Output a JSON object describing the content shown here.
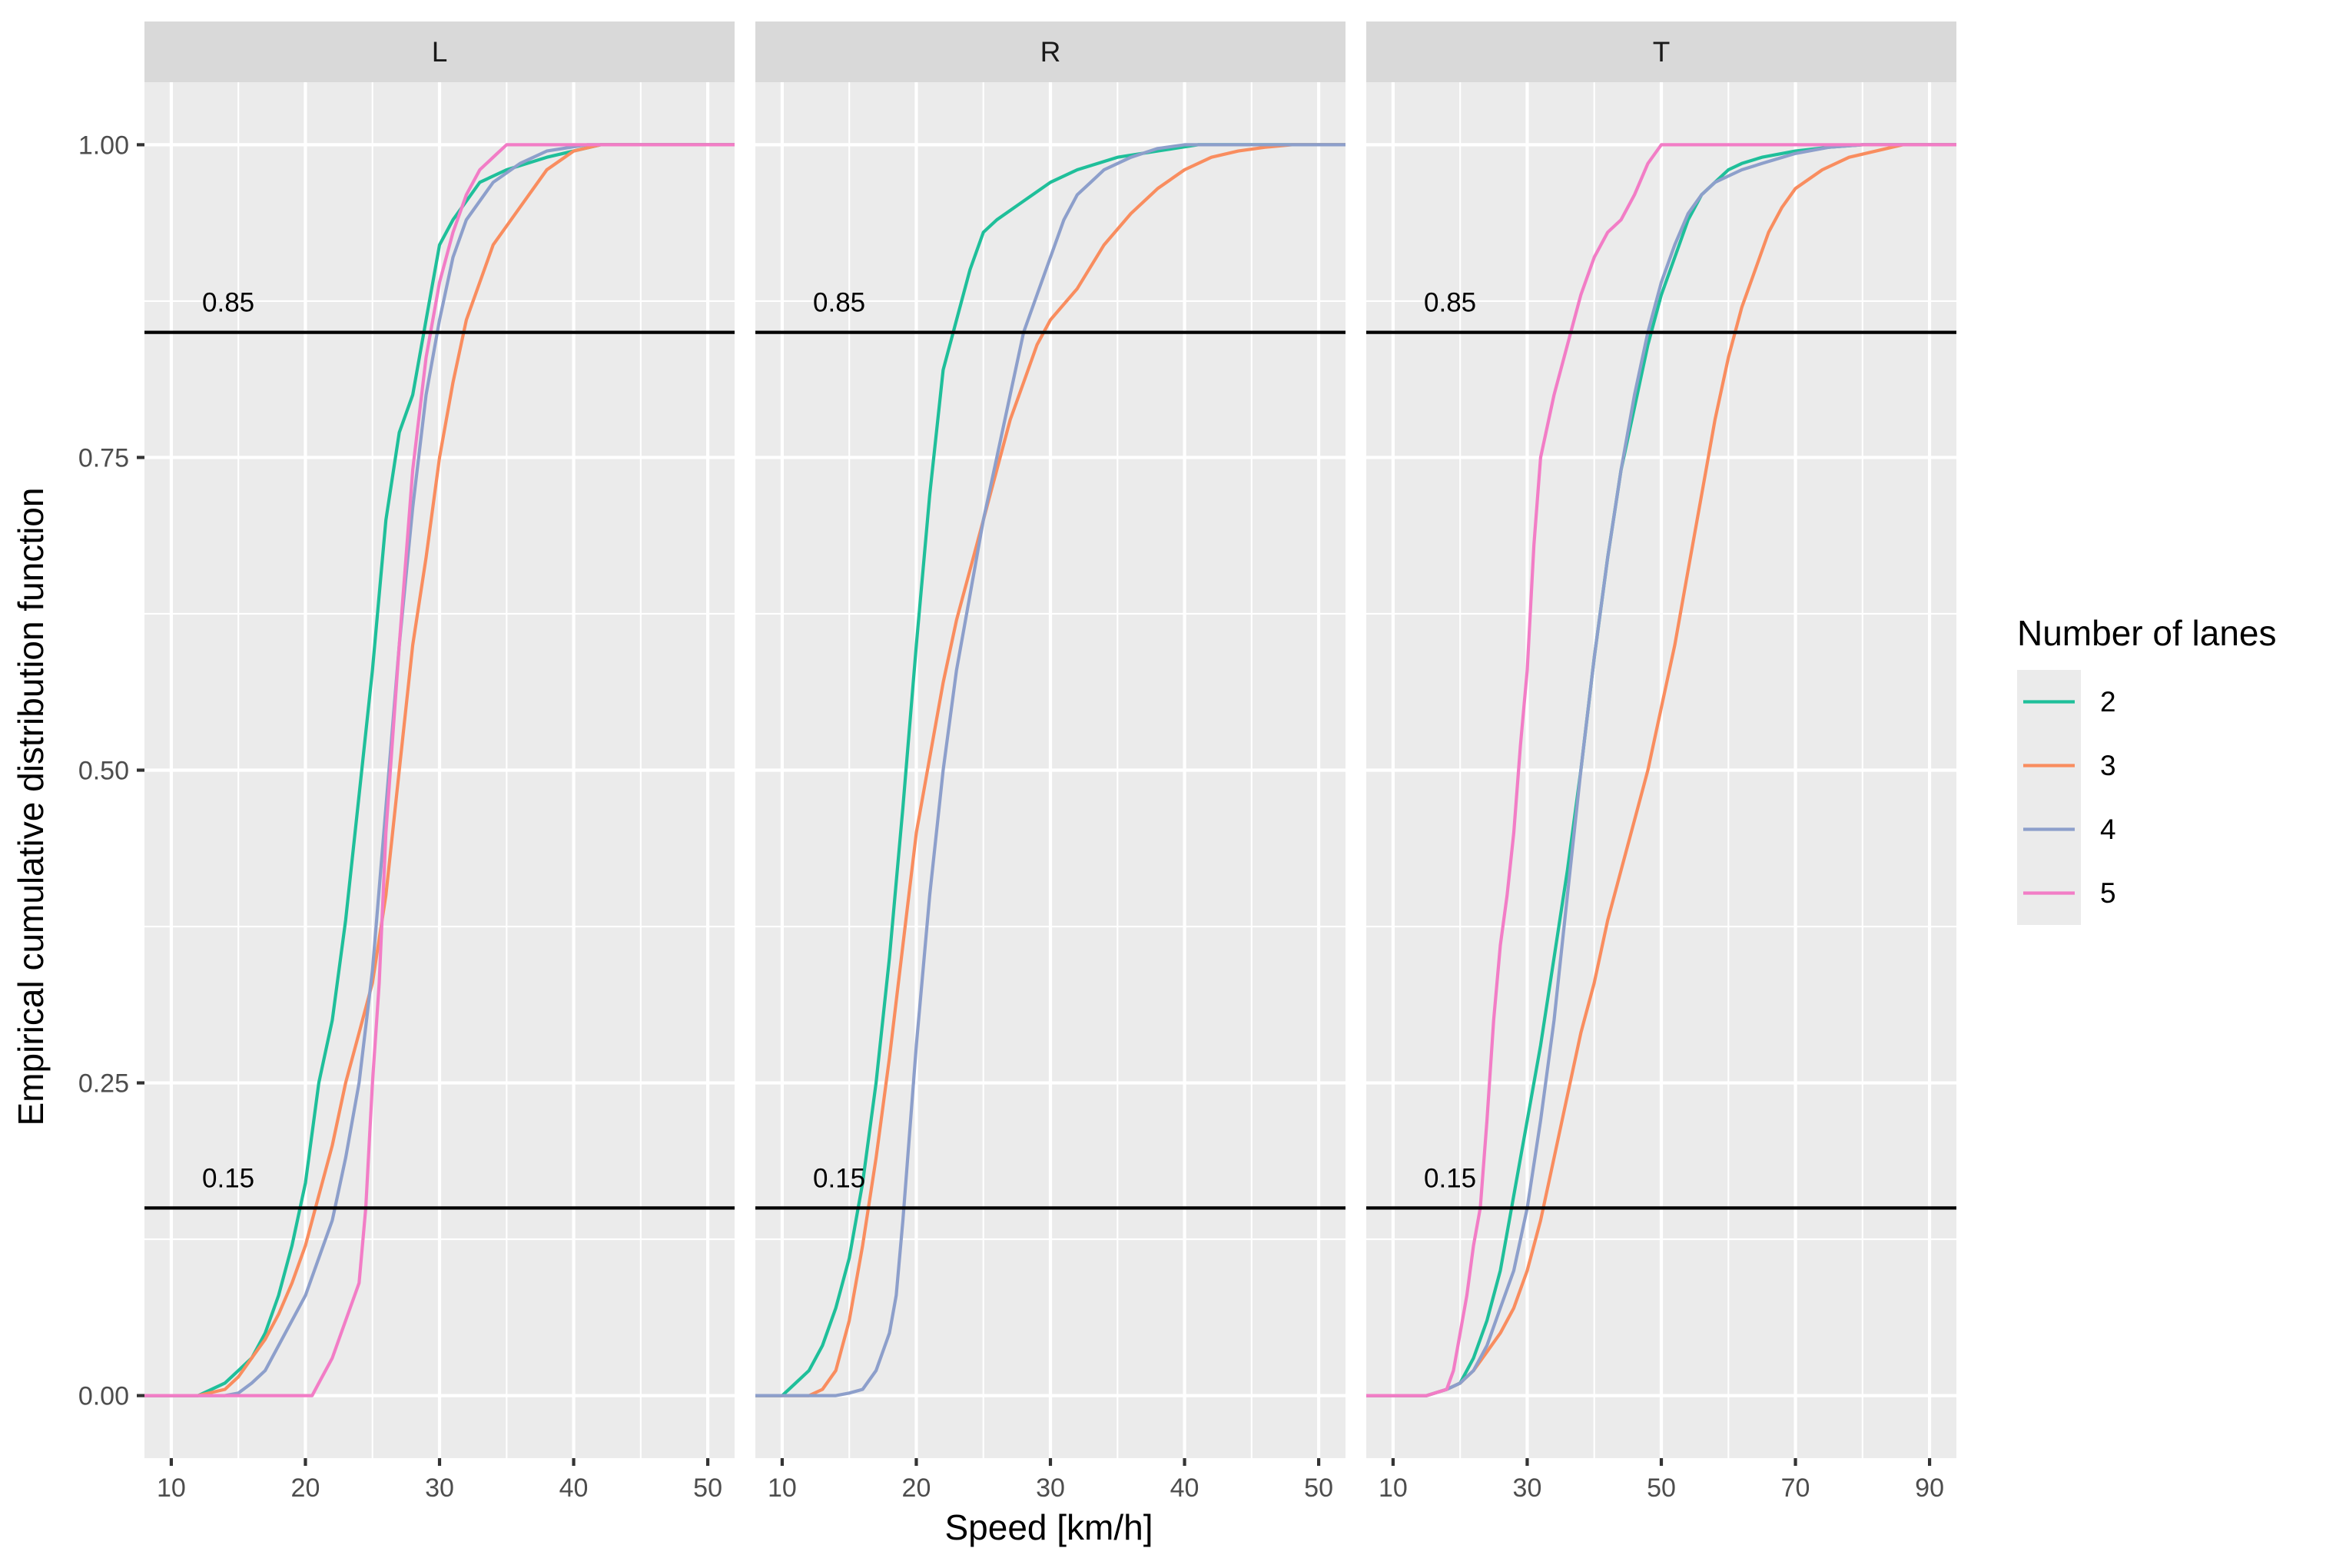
{
  "chart_data": {
    "type": "line",
    "subtype": "ecdf",
    "xlabel": "Speed [km/h]",
    "ylabel": "Empirical cumulative distribution function",
    "y_ticks": [
      "0.00",
      "0.25",
      "0.50",
      "0.75",
      "1.00"
    ],
    "ylim": [
      -0.05,
      1.05
    ],
    "reference_lines": [
      {
        "value": 0.85,
        "label": "0.85"
      },
      {
        "value": 0.15,
        "label": "0.15"
      }
    ],
    "legend": {
      "title": "Number of lanes",
      "entries": [
        {
          "name": "2",
          "color": "#1fbf9a"
        },
        {
          "name": "3",
          "color": "#f98d5f"
        },
        {
          "name": "4",
          "color": "#8d9fcb"
        },
        {
          "name": "5",
          "color": "#f27dc6"
        }
      ]
    },
    "panels": [
      {
        "name": "L",
        "xlim": [
          8,
          52
        ],
        "x_ticks": [
          "10",
          "20",
          "30",
          "40",
          "50"
        ],
        "x_minor": [
          15,
          25,
          35,
          45
        ],
        "series": [
          {
            "name": "2",
            "x": [
              8,
              12,
              14,
              15,
              16,
              17,
              18,
              19,
              20,
              21,
              22,
              23,
              24,
              25,
              26,
              27,
              28,
              29,
              30,
              31,
              33,
              35,
              38,
              42,
              52
            ],
            "y": [
              0,
              0,
              0.01,
              0.02,
              0.03,
              0.05,
              0.08,
              0.12,
              0.17,
              0.25,
              0.3,
              0.38,
              0.48,
              0.58,
              0.7,
              0.77,
              0.8,
              0.86,
              0.92,
              0.94,
              0.97,
              0.98,
              0.99,
              1.0,
              1.0
            ]
          },
          {
            "name": "3",
            "x": [
              8,
              12,
              14,
              15,
              16,
              17,
              18,
              19,
              20,
              21,
              22,
              23,
              24,
              25,
              26,
              27,
              28,
              29,
              30,
              31,
              32,
              34,
              36,
              38,
              40,
              42,
              52
            ],
            "y": [
              0,
              0,
              0.005,
              0.015,
              0.03,
              0.045,
              0.065,
              0.09,
              0.12,
              0.16,
              0.2,
              0.25,
              0.29,
              0.33,
              0.4,
              0.5,
              0.6,
              0.67,
              0.75,
              0.81,
              0.86,
              0.92,
              0.95,
              0.98,
              0.995,
              1.0,
              1.0
            ]
          },
          {
            "name": "4",
            "x": [
              8,
              14,
              15,
              16,
              17,
              18,
              19,
              20,
              21,
              22,
              23,
              24,
              25,
              26,
              27,
              28,
              29,
              30,
              31,
              32,
              34,
              36,
              38,
              41,
              52
            ],
            "y": [
              0,
              0,
              0.002,
              0.01,
              0.02,
              0.04,
              0.06,
              0.08,
              0.11,
              0.14,
              0.19,
              0.25,
              0.34,
              0.47,
              0.6,
              0.71,
              0.8,
              0.86,
              0.91,
              0.94,
              0.97,
              0.985,
              0.995,
              1.0,
              1.0
            ]
          },
          {
            "name": "5",
            "x": [
              8,
              20.5,
              21,
              22,
              23,
              24,
              24.5,
              25,
              25.5,
              26,
              27,
              28,
              29,
              30,
              31,
              32,
              33,
              34,
              35,
              52
            ],
            "y": [
              0,
              0,
              0.01,
              0.03,
              0.06,
              0.09,
              0.15,
              0.25,
              0.33,
              0.45,
              0.6,
              0.74,
              0.83,
              0.89,
              0.93,
              0.96,
              0.98,
              0.99,
              1.0,
              1.0
            ]
          }
        ]
      },
      {
        "name": "R",
        "xlim": [
          8,
          52
        ],
        "x_ticks": [
          "10",
          "20",
          "30",
          "40",
          "50"
        ],
        "x_minor": [
          15,
          25,
          35,
          45
        ],
        "series": [
          {
            "name": "2",
            "x": [
              8,
              10,
              11,
              12,
              13,
              14,
              15,
              16,
              17,
              18,
              19,
              20,
              21,
              22,
              23,
              24,
              25,
              26,
              28,
              30,
              32,
              35,
              38,
              41,
              52
            ],
            "y": [
              0,
              0,
              0.01,
              0.02,
              0.04,
              0.07,
              0.11,
              0.17,
              0.25,
              0.35,
              0.47,
              0.6,
              0.72,
              0.82,
              0.86,
              0.9,
              0.93,
              0.94,
              0.955,
              0.97,
              0.98,
              0.99,
              0.995,
              1.0,
              1.0
            ]
          },
          {
            "name": "3",
            "x": [
              8,
              12,
              13,
              14,
              15,
              16,
              17,
              18,
              19,
              20,
              21,
              22,
              23,
              24,
              25,
              26,
              27,
              28,
              29,
              30,
              32,
              34,
              36,
              38,
              40,
              42,
              44,
              46,
              48,
              52
            ],
            "y": [
              0,
              0,
              0.005,
              0.02,
              0.06,
              0.12,
              0.19,
              0.27,
              0.36,
              0.45,
              0.51,
              0.57,
              0.62,
              0.66,
              0.7,
              0.74,
              0.78,
              0.81,
              0.84,
              0.86,
              0.885,
              0.92,
              0.945,
              0.965,
              0.98,
              0.99,
              0.995,
              0.998,
              1.0,
              1.0
            ]
          },
          {
            "name": "4",
            "x": [
              8,
              14,
              15,
              16,
              17,
              18,
              18.5,
              19,
              20,
              21,
              22,
              23,
              24,
              25,
              26,
              27,
              28,
              29,
              30,
              31,
              32,
              33,
              34,
              36,
              38,
              40,
              52
            ],
            "y": [
              0,
              0,
              0.002,
              0.005,
              0.02,
              0.05,
              0.08,
              0.14,
              0.28,
              0.4,
              0.5,
              0.58,
              0.64,
              0.7,
              0.75,
              0.8,
              0.85,
              0.88,
              0.91,
              0.94,
              0.96,
              0.97,
              0.98,
              0.99,
              0.997,
              1.0,
              1.0
            ]
          }
        ]
      },
      {
        "name": "T",
        "xlim": [
          6,
          94
        ],
        "x_ticks": [
          "10",
          "30",
          "50",
          "70",
          "90"
        ],
        "x_minor": [
          20,
          40,
          60,
          80
        ],
        "series": [
          {
            "name": "2",
            "x": [
              6,
              15,
              18,
              20,
              22,
              24,
              26,
              28,
              30,
              32,
              34,
              36,
              38,
              40,
              42,
              44,
              46,
              48,
              50,
              52,
              54,
              56,
              58,
              60,
              62,
              65,
              70,
              75,
              80,
              85,
              94
            ],
            "y": [
              0,
              0,
              0.005,
              0.01,
              0.03,
              0.06,
              0.1,
              0.16,
              0.22,
              0.28,
              0.35,
              0.42,
              0.5,
              0.59,
              0.67,
              0.74,
              0.79,
              0.84,
              0.88,
              0.91,
              0.94,
              0.96,
              0.97,
              0.98,
              0.985,
              0.99,
              0.995,
              0.998,
              1.0,
              1.0,
              1.0
            ]
          },
          {
            "name": "3",
            "x": [
              6,
              15,
              18,
              20,
              22,
              24,
              26,
              28,
              30,
              32,
              34,
              36,
              38,
              40,
              42,
              44,
              46,
              48,
              50,
              52,
              54,
              56,
              58,
              60,
              62,
              64,
              66,
              68,
              70,
              74,
              78,
              82,
              86,
              94
            ],
            "y": [
              0,
              0,
              0.005,
              0.01,
              0.02,
              0.035,
              0.05,
              0.07,
              0.1,
              0.14,
              0.19,
              0.24,
              0.29,
              0.33,
              0.38,
              0.42,
              0.46,
              0.5,
              0.55,
              0.6,
              0.66,
              0.72,
              0.78,
              0.83,
              0.87,
              0.9,
              0.93,
              0.95,
              0.965,
              0.98,
              0.99,
              0.995,
              1.0,
              1.0
            ]
          },
          {
            "name": "4",
            "x": [
              6,
              15,
              18,
              20,
              22,
              24,
              26,
              28,
              30,
              32,
              34,
              36,
              38,
              40,
              42,
              44,
              46,
              48,
              50,
              52,
              54,
              56,
              58,
              60,
              62,
              65,
              70,
              75,
              80,
              94
            ],
            "y": [
              0,
              0,
              0.005,
              0.01,
              0.02,
              0.04,
              0.07,
              0.1,
              0.15,
              0.22,
              0.3,
              0.4,
              0.5,
              0.59,
              0.67,
              0.74,
              0.8,
              0.85,
              0.89,
              0.92,
              0.945,
              0.96,
              0.97,
              0.975,
              0.98,
              0.985,
              0.993,
              0.998,
              1.0,
              1.0
            ]
          },
          {
            "name": "5",
            "x": [
              6,
              15,
              18,
              19,
              20,
              21,
              22,
              23,
              24,
              25,
              26,
              27,
              28,
              29,
              30,
              31,
              32,
              34,
              36,
              37,
              38,
              40,
              42,
              44,
              46,
              48,
              50,
              94
            ],
            "y": [
              0,
              0,
              0.005,
              0.02,
              0.05,
              0.08,
              0.12,
              0.15,
              0.22,
              0.3,
              0.36,
              0.4,
              0.45,
              0.52,
              0.58,
              0.68,
              0.75,
              0.8,
              0.84,
              0.86,
              0.88,
              0.91,
              0.93,
              0.94,
              0.96,
              0.985,
              1.0,
              1.0
            ]
          }
        ]
      }
    ]
  }
}
